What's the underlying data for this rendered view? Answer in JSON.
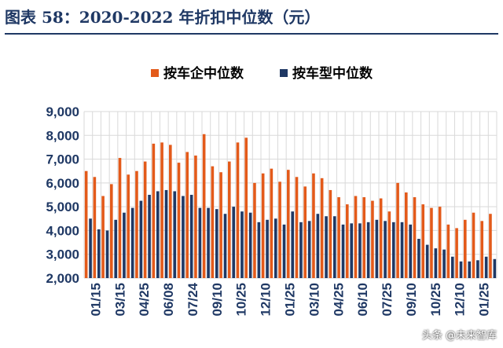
{
  "figure_title": "图表 58：2020-2022 年折扣中位数（元）",
  "watermark": "头条 @未来智库",
  "colors": {
    "series_a": "#e35a1a",
    "series_b": "#1f3864",
    "title": "#1f3864",
    "grid": "#d9d9d9",
    "axis_text": "#1f3864"
  },
  "chart_data": {
    "type": "bar",
    "legend_position": "top-center",
    "grid": true,
    "ylim": [
      2000,
      9000
    ],
    "yticks": [
      "2,000",
      "3,000",
      "4,000",
      "5,000",
      "6,000",
      "7,000",
      "8,000",
      "9,000"
    ],
    "xlabel": "",
    "ylabel": "",
    "x_tick_labels": [
      "01/15",
      "03/15",
      "04/25",
      "06/08",
      "07/24",
      "09/10",
      "10/25",
      "12/10",
      "01/25",
      "03/10",
      "04/25",
      "06/10",
      "07/25",
      "09/10",
      "10/25",
      "12/10",
      "01/25"
    ],
    "series": [
      {
        "name": "按车企中位数",
        "values": [
          6500,
          6250,
          5450,
          5950,
          7050,
          6350,
          6500,
          6900,
          7650,
          7700,
          7600,
          6850,
          7300,
          7150,
          8050,
          6700,
          6450,
          6900,
          7700,
          7900,
          6000,
          6400,
          6600,
          6050,
          6550,
          6250,
          5850,
          6400,
          6200,
          5700,
          5400,
          5100,
          5450,
          5400,
          5250,
          5350,
          4800,
          6000,
          5600,
          5400,
          5100,
          4950,
          5000,
          4250,
          4100,
          4450,
          4750,
          4400,
          4700
        ]
      },
      {
        "name": "按车型中位数",
        "values": [
          4500,
          4050,
          4000,
          4450,
          4750,
          4950,
          5250,
          5500,
          5650,
          5700,
          5650,
          5450,
          5500,
          4950,
          4950,
          4900,
          4700,
          5000,
          4800,
          4750,
          4350,
          4450,
          4500,
          4250,
          4800,
          4350,
          4400,
          4700,
          4600,
          4600,
          4250,
          4300,
          4300,
          4350,
          4450,
          4400,
          4350,
          4350,
          4250,
          3650,
          3400,
          3250,
          3200,
          2900,
          2700,
          2700,
          2750,
          2900,
          2800
        ]
      }
    ]
  }
}
